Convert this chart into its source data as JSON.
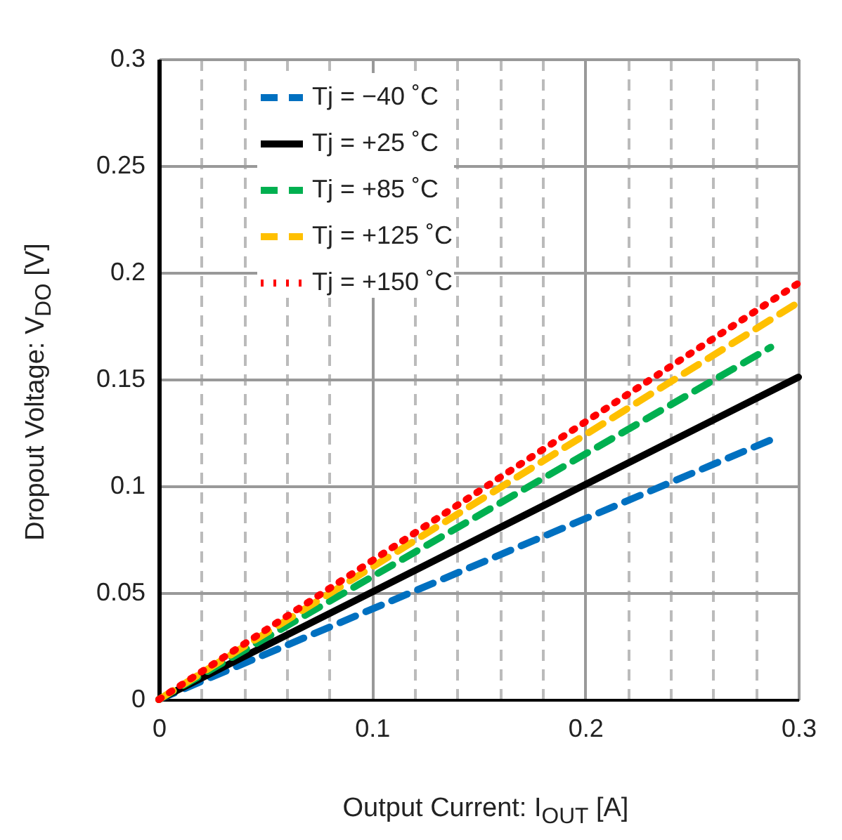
{
  "chart_data": {
    "type": "line",
    "xlabel": "Output Current: I$_{OUT}$ [A]",
    "ylabel": "Dropout Voltage: V$_{DO}$ [V]",
    "xlim": [
      0,
      0.3
    ],
    "ylim": [
      0,
      0.3
    ],
    "xticks": [
      0,
      {
        "value": 0.02,
        "label": null
      },
      {
        "value": 0.04,
        "label": null
      },
      {
        "value": 0.06,
        "label": null
      },
      {
        "value": 0.08,
        "label": null
      },
      0.1,
      {
        "value": 0.12,
        "label": null
      },
      {
        "value": 0.14,
        "label": null
      },
      {
        "value": 0.16,
        "label": null
      },
      {
        "value": 0.18,
        "label": null
      },
      0.2,
      {
        "value": 0.22,
        "label": null
      },
      {
        "value": 0.24,
        "label": null
      },
      {
        "value": 0.26,
        "label": null
      },
      {
        "value": 0.28,
        "label": null
      },
      0.3
    ],
    "yticks": [
      0,
      0.05,
      0.1,
      0.15,
      0.2,
      0.25,
      0.3
    ],
    "grid": true,
    "legend": "top left",
    "marker": "none",
    "series": [
      {
        "name": "Tj = −40 ˚C",
        "color": "#0070c0",
        "line_style": "dashed",
        "x": [
          0,
          0.288
        ],
        "values": [
          0,
          0.122
        ]
      },
      {
        "name": "Tj = +25 ˚C",
        "color": "#000000",
        "line_style": "solid",
        "x": [
          0,
          0.3
        ],
        "values": [
          0,
          0.151
        ]
      },
      {
        "name": "Tj = +85 ˚C",
        "color": "#00b050",
        "line_style": "dashed",
        "x": [
          0,
          0.287
        ],
        "values": [
          0,
          0.165
        ]
      },
      {
        "name": "Tj = +125 ˚C",
        "color": "#ffc000",
        "line_style": "dashed",
        "x": [
          0,
          0.3
        ],
        "values": [
          0,
          0.186
        ]
      },
      {
        "name": "Tj = +150 ˚C",
        "color": "#ff0000",
        "line_style": "dotted",
        "x": [
          0,
          0.3
        ],
        "values": [
          0,
          0.195
        ]
      }
    ]
  }
}
